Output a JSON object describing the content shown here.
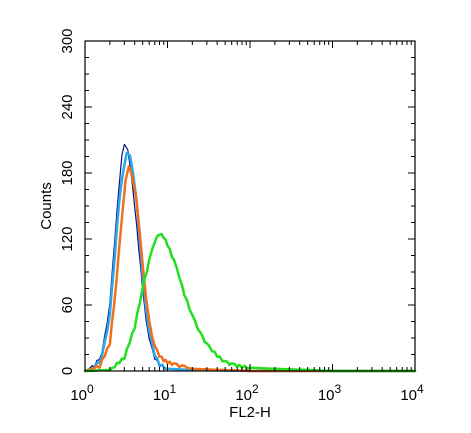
{
  "chart_data": {
    "type": "line",
    "xlabel": "FL2-H",
    "ylabel": "Counts",
    "xscale": "log",
    "xlim": [
      1,
      10000
    ],
    "ylim": [
      0,
      300
    ],
    "grid": false,
    "x_ticks": [
      {
        "value": 1,
        "base": "10",
        "exp": "0"
      },
      {
        "value": 10,
        "base": "10",
        "exp": "1"
      },
      {
        "value": 100,
        "base": "10",
        "exp": "2"
      },
      {
        "value": 1000,
        "base": "10",
        "exp": "3"
      },
      {
        "value": 10000,
        "base": "10",
        "exp": "4"
      }
    ],
    "y_ticks": [
      {
        "value": 0,
        "label": "0"
      },
      {
        "value": 60,
        "label": "60"
      },
      {
        "value": 120,
        "label": "120"
      },
      {
        "value": 180,
        "label": "180"
      },
      {
        "value": 240,
        "label": "240"
      },
      {
        "value": 300,
        "label": "300"
      }
    ],
    "series": [
      {
        "color": "#0a0f8c",
        "width": 1.2,
        "x": [
          1,
          1.3,
          1.6,
          2,
          2.3,
          2.6,
          2.8,
          3,
          3.3,
          3.6,
          4,
          4.5,
          5,
          5.5,
          6,
          7,
          8,
          10,
          20,
          100,
          1000,
          10000
        ],
        "y": [
          0,
          5,
          15,
          60,
          120,
          170,
          195,
          205,
          200,
          180,
          150,
          110,
          75,
          45,
          28,
          12,
          5,
          2,
          1,
          0,
          0,
          0
        ]
      },
      {
        "color": "#29a9e8",
        "width": 2.5,
        "x": [
          1,
          1.3,
          1.6,
          2,
          2.3,
          2.6,
          2.9,
          3.2,
          3.5,
          3.8,
          4.2,
          4.6,
          5,
          5.5,
          6,
          7,
          8,
          10,
          20,
          100,
          1000,
          10000
        ],
        "y": [
          0,
          3,
          12,
          50,
          105,
          155,
          182,
          197,
          195,
          180,
          155,
          120,
          85,
          55,
          35,
          15,
          6,
          2,
          1,
          0,
          0,
          0
        ]
      },
      {
        "color": "#f07020",
        "width": 2.5,
        "x": [
          1,
          1.5,
          2,
          2.4,
          2.8,
          3.1,
          3.4,
          3.8,
          4.2,
          4.6,
          5,
          5.5,
          6,
          6.5,
          7,
          8,
          9,
          10,
          12,
          15,
          20,
          100,
          10000
        ],
        "y": [
          0,
          4,
          25,
          80,
          140,
          172,
          185,
          175,
          155,
          125,
          95,
          65,
          45,
          30,
          22,
          14,
          10,
          8,
          6,
          4,
          2,
          0,
          0
        ]
      },
      {
        "color": "#22e01e",
        "width": 2.5,
        "x": [
          1,
          2,
          3,
          4,
          5,
          6,
          7,
          8,
          9,
          10,
          12,
          14,
          16,
          20,
          25,
          30,
          40,
          50,
          60,
          80,
          100,
          200,
          500,
          1000,
          10000
        ],
        "y": [
          0,
          1,
          12,
          40,
          75,
          100,
          118,
          125,
          122,
          115,
          100,
          85,
          70,
          50,
          34,
          24,
          14,
          8,
          6,
          4,
          3,
          2,
          1,
          0,
          0
        ]
      }
    ]
  }
}
